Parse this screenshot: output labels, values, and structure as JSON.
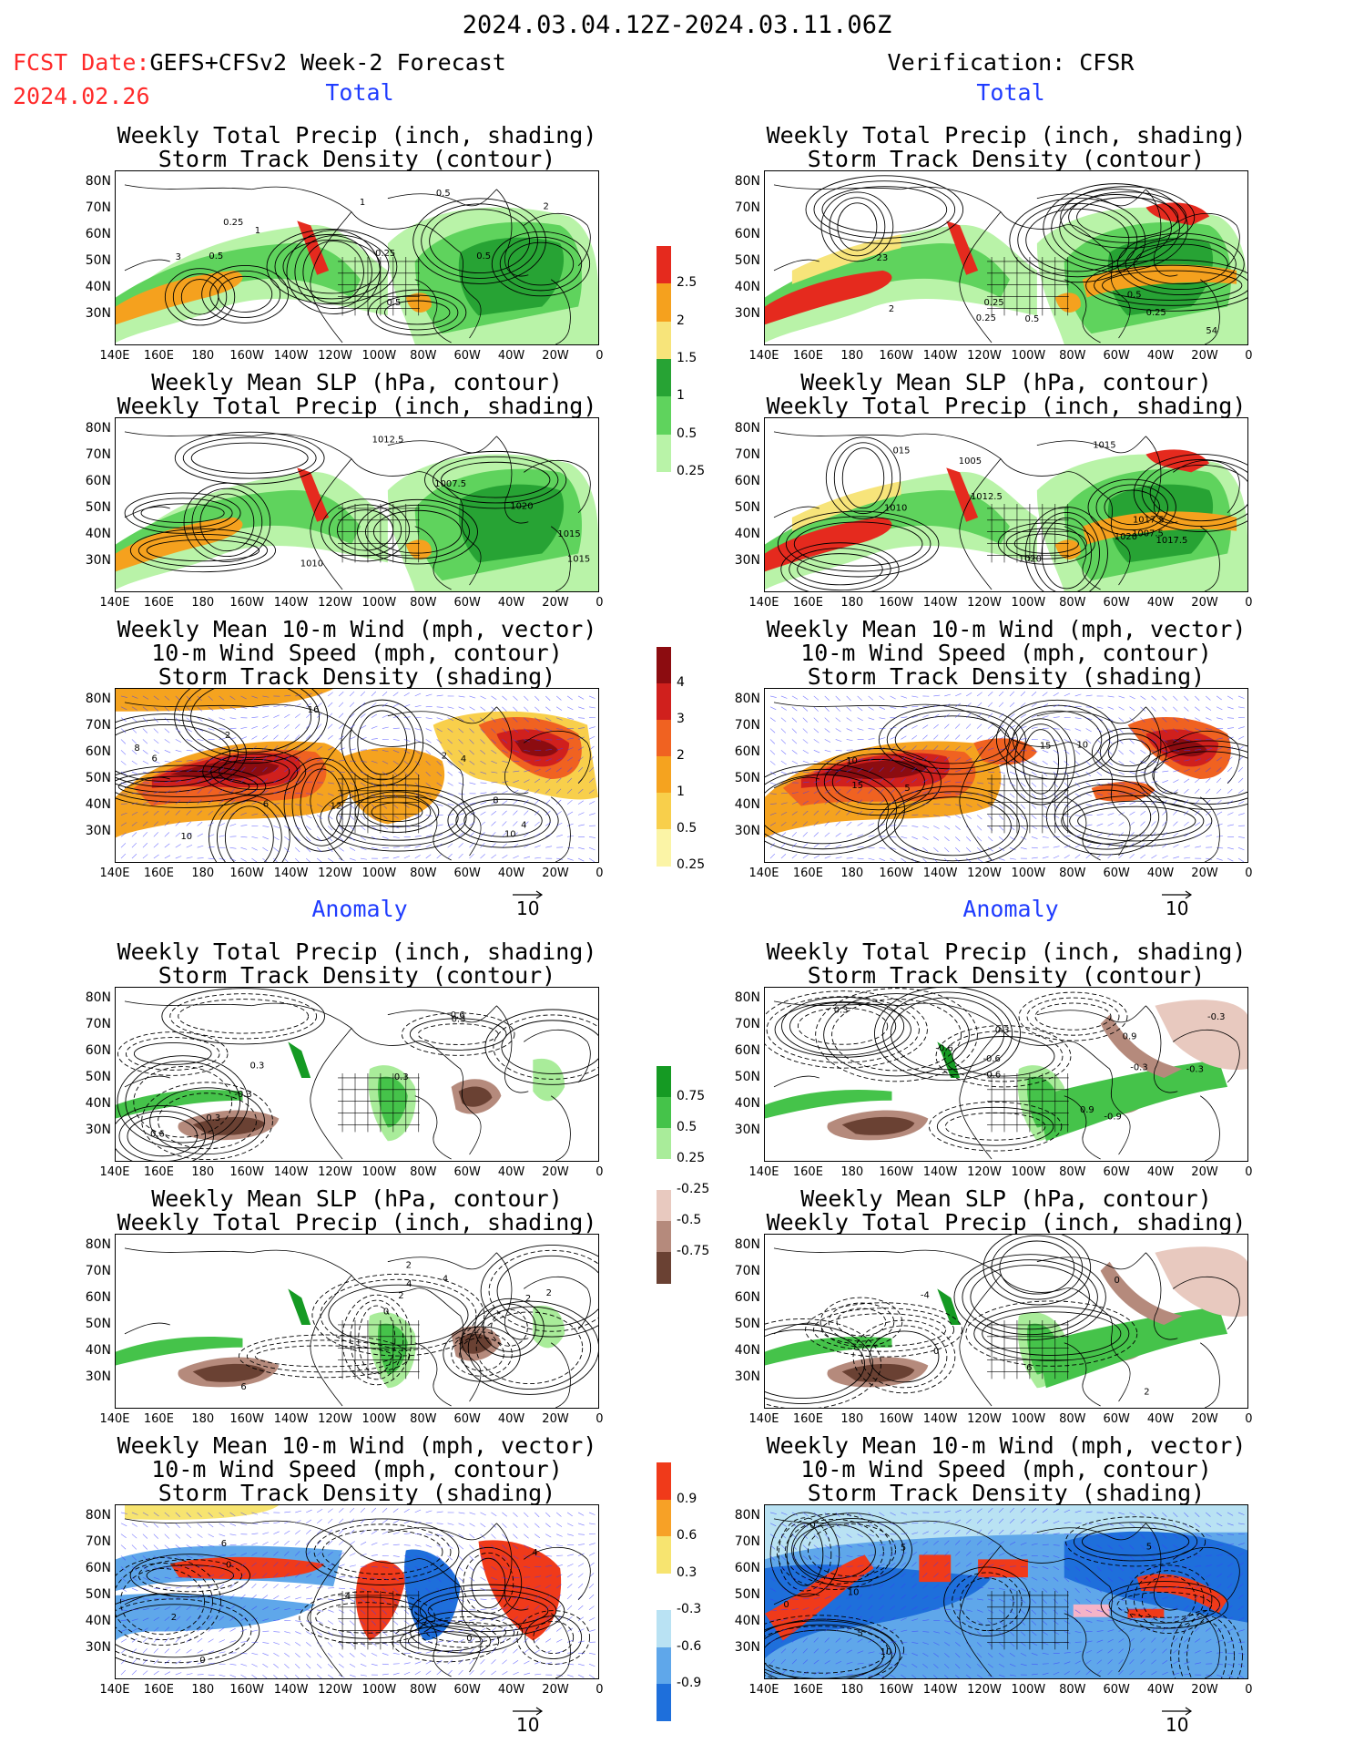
{
  "header": {
    "date_range": "2024.03.04.12Z-2024.03.11.06Z",
    "fcst_label": "FCST Date:",
    "fcst_model": "GEFS+CFSv2 Week-2 Forecast",
    "fcst_date": "2024.02.26",
    "verification": "Verification: CFSR"
  },
  "sections": {
    "total": "Total",
    "anomaly": "Anomaly"
  },
  "titles": {
    "precip_std": [
      "Weekly Total Precip (inch, shading)",
      "Storm Track Density (contour)"
    ],
    "slp_precip": [
      "Weekly Mean SLP (hPa, contour)",
      "Weekly Total Precip (inch, shading)"
    ],
    "wind_std": [
      "Weekly Mean 10-m Wind (mph, vector)",
      "10-m Wind Speed (mph, contour)",
      "Storm Track Density (shading)"
    ]
  },
  "axes": {
    "lat_labels": [
      "80N",
      "70N",
      "60N",
      "50N",
      "40N",
      "30N"
    ],
    "lon_labels": [
      "140E",
      "160E",
      "180",
      "160W",
      "140W",
      "120W",
      "100W",
      "80W",
      "60W",
      "40W",
      "20W",
      "0"
    ]
  },
  "vector_ref": "10",
  "colorbars": {
    "precip_total": {
      "labels": [
        "2.5",
        "2",
        "1.5",
        "1",
        "0.5",
        "0.25"
      ],
      "colors": [
        "#e52a1e",
        "#f5a11e",
        "#f7e47a",
        "#27a334",
        "#5fd35d",
        "#b9f3a8"
      ]
    },
    "std_total": {
      "labels": [
        "4",
        "3",
        "2",
        "1",
        "0.5",
        "0.25"
      ],
      "colors": [
        "#8c0c10",
        "#d0201d",
        "#f06221",
        "#f5a31f",
        "#f8cf4b",
        "#fbf4a6"
      ]
    },
    "precip_anom": {
      "labels": [
        "0.75",
        "0.5",
        "0.25",
        "-0.25",
        "-0.5",
        "-0.75"
      ],
      "colors": [
        "#159a23",
        "#45c34a",
        "#a9ec9a",
        "#ffffff",
        "#e8c9bf",
        "#b58a7c",
        "#6a4133"
      ]
    },
    "std_anom": {
      "labels": [
        "0.9",
        "0.6",
        "0.3",
        "-0.3",
        "-0.6",
        "-0.9"
      ],
      "colors": [
        "#f03a1a",
        "#f7a126",
        "#f7e470",
        "#ffffff",
        "#b9e2f3",
        "#5fa7ea",
        "#1e6fdb"
      ]
    }
  },
  "contour_labels": {
    "fc_total_precip": [
      "0.5",
      "0.25",
      "0.5",
      "3",
      "2",
      "1",
      "0.5",
      "0.25",
      "1",
      "0.5"
    ],
    "vr_total_precip": [
      "2",
      "0.25",
      "0.5",
      "0.25",
      "0.5",
      "23",
      "54",
      "0.25"
    ],
    "fc_total_slp": [
      "1007.5",
      "1012.5",
      "1015",
      "1015",
      "1010",
      "1020"
    ],
    "vr_total_slp": [
      "1020",
      "1017.5",
      "1017.5",
      "1015",
      "1010",
      "1007.5",
      "1012.5",
      "1020",
      "1005",
      "015"
    ],
    "fc_total_wind": [
      "2",
      "4",
      "6",
      "10",
      "8",
      "12",
      "2",
      "4",
      "6",
      "10",
      "8",
      "16"
    ],
    "vr_total_wind": [
      "5",
      "10",
      "15",
      "15",
      "10"
    ],
    "fc_anom_precip": [
      "0.6",
      "-0.3",
      "0.3",
      "0.3",
      "0.3",
      "0.6",
      "0.3"
    ],
    "vr_anom_precip": [
      "-0.3",
      "0.3",
      "-0.6",
      "0.6",
      "0.3",
      "-0.3",
      "-0.6",
      "-0.9",
      "-0.3",
      "0.9",
      "0.9"
    ],
    "fc_anom_slp": [
      "6",
      "0",
      "2",
      "2",
      "4",
      "2",
      "4",
      "2"
    ],
    "vr_anom_slp": [
      "-4",
      "2",
      "0",
      "0",
      "6"
    ],
    "fc_anom_wind": [
      "0",
      "4",
      "6",
      "4",
      "0",
      "0",
      "2"
    ],
    "vr_anom_wind": [
      "5",
      "5",
      "0",
      "10",
      "0",
      "10",
      "5"
    ]
  }
}
